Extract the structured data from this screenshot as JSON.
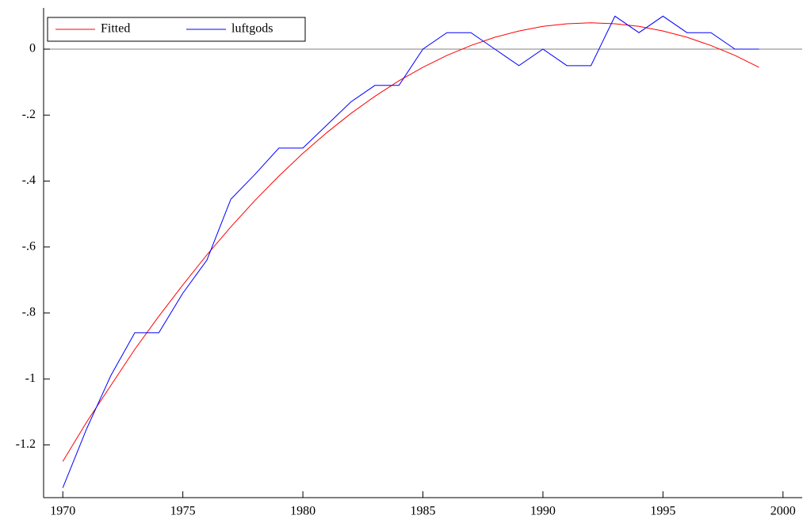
{
  "chart_data": {
    "type": "line",
    "x": [
      1970,
      1971,
      1972,
      1973,
      1974,
      1975,
      1976,
      1977,
      1978,
      1979,
      1980,
      1981,
      1982,
      1983,
      1984,
      1985,
      1986,
      1987,
      1988,
      1989,
      1990,
      1991,
      1992,
      1993,
      1994,
      1995,
      1996,
      1997,
      1998,
      1999
    ],
    "series": [
      {
        "name": "Fitted",
        "color": "#ff0000",
        "values": [
          -1.25,
          -1.13,
          -1.02,
          -0.91,
          -0.81,
          -0.715,
          -0.624,
          -0.539,
          -0.459,
          -0.385,
          -0.316,
          -0.253,
          -0.195,
          -0.143,
          -0.096,
          -0.055,
          -0.019,
          0.011,
          0.036,
          0.055,
          0.069,
          0.077,
          0.08,
          0.077,
          0.069,
          0.055,
          0.036,
          0.011,
          -0.019,
          -0.055
        ]
      },
      {
        "name": "luftgods",
        "color": "#0000ff",
        "values": [
          -1.33,
          -1.15,
          -0.99,
          -0.86,
          -0.86,
          -0.74,
          -0.64,
          -0.455,
          -0.38,
          -0.3,
          -0.3,
          -0.23,
          -0.16,
          -0.11,
          -0.11,
          0,
          0.05,
          0.05,
          0,
          -0.05,
          0,
          -0.05,
          -0.05,
          0.1,
          0.05,
          0.1,
          0.05,
          0.05,
          0,
          0
        ]
      }
    ],
    "xlim": [
      1969.2,
      2000.8
    ],
    "xticks": [
      1970,
      1975,
      1980,
      1985,
      1990,
      1995,
      2000
    ],
    "ylim": [
      -1.36,
      0.125
    ],
    "yticks": [
      0,
      {
        "value": -0.2,
        "label": "-.2"
      },
      {
        "value": -0.4,
        "label": "-.4"
      },
      {
        "value": -0.6,
        "label": "-.6"
      },
      {
        "value": -0.8,
        "label": "-.8"
      },
      -1,
      -1.2
    ],
    "zero_line": true,
    "legend": "upper left"
  }
}
